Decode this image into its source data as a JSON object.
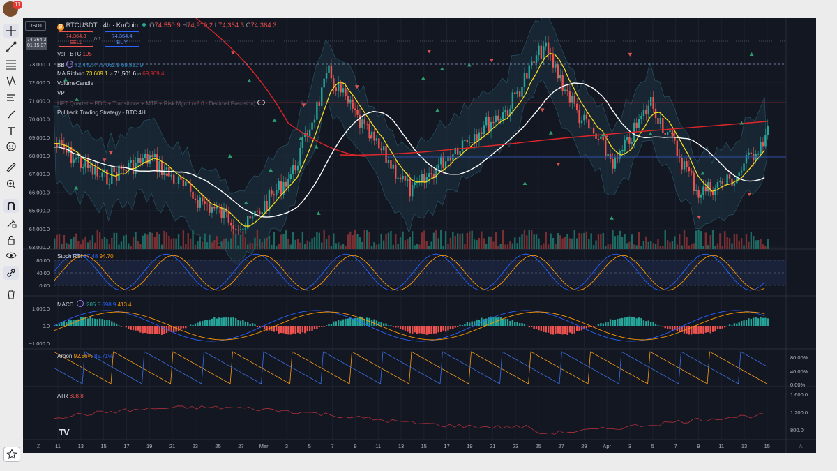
{
  "app": {
    "notification_count": "11"
  },
  "header": {
    "symbol_title": "BTCUSDT · 4h · KuCoin",
    "ohlc": {
      "o_label": "O",
      "o": "74,550.9",
      "h_label": "H",
      "h": "74,910.2",
      "l_label": "L",
      "l": "74,364.3",
      "c_label": "C",
      "c": "74,364.3"
    },
    "currency": "USDT",
    "sell_price": "74,364.3",
    "sell_label": "SELL",
    "spread": "0.1",
    "buy_price": "74,364.4",
    "buy_label": "BUY",
    "price_badge": "74,364.3",
    "countdown": "01:15:37"
  },
  "indicators": {
    "vol": {
      "name": "Vol · BTC",
      "value": "195"
    },
    "bb": {
      "name": "BB",
      "v1": "72,442.4",
      "v2": "75,062.9",
      "v3": "69,821.9"
    },
    "ma_ribbon": {
      "name": "MA Ribbon",
      "v1": "73,609.1",
      "v2": "71,501.6",
      "v3": "69,969.4",
      "sep": "⌀"
    },
    "volume_candle": "VolumeCandle",
    "vp": "VP",
    "hft": "HFT Quartet + PDC + Transitions + MTF + Risk Mgmt (v2.0 - Decimal Precision)",
    "pullback": "Pullback Trading Strategy - BTC 4H"
  },
  "price_axis": [
    "73,000.0",
    "72,000.0",
    "71,000.0",
    "70,000.0",
    "69,000.0",
    "68,000.0",
    "67,000.0",
    "66,000.0",
    "65,000.0",
    "64,000.0",
    "63,000.0"
  ],
  "stoch_rsi": {
    "name": "Stoch RSI",
    "k": "97.48",
    "d": "94.70",
    "axis": [
      "80.00",
      "40.00",
      "0.00"
    ]
  },
  "macd": {
    "name": "MACD",
    "hist": "285.5",
    "macd": "698.9",
    "signal": "413.4",
    "axis": [
      "1,000.0",
      "0.0",
      "−1,000.0"
    ]
  },
  "aroon": {
    "name": "Aroon",
    "up": "92.86%",
    "down": "85.71%",
    "axis": [
      "80.00%",
      "40.00%",
      "0.00%"
    ]
  },
  "atr": {
    "name": "ATR",
    "value": "808.8",
    "axis": [
      "1,600.0",
      "1,200.0",
      "800.0"
    ]
  },
  "time_axis": [
    "11",
    "13",
    "15",
    "17",
    "19",
    "21",
    "23",
    "25",
    "27",
    "Mar",
    "3",
    "5",
    "7",
    "9",
    "11",
    "13",
    "15",
    "17",
    "19",
    "21",
    "23",
    "25",
    "27",
    "29",
    "Apr",
    "3",
    "5",
    "7",
    "9",
    "11",
    "13",
    "15"
  ],
  "time_nav": {
    "left": "Z",
    "right": "A"
  },
  "colors": {
    "bg": "#131722",
    "up": "#26a69a",
    "down": "#ef5350",
    "yellow": "#f5d922",
    "white": "#ffffff",
    "red": "#e0262a",
    "blue": "#3b6fe0",
    "orange": "#f59c1a"
  }
}
